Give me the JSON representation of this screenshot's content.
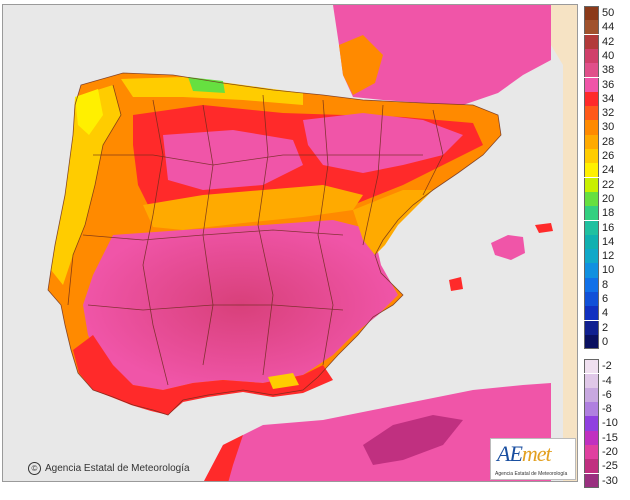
{
  "map": {
    "credit_text": "Agencia Estatal de Meteorología",
    "logo_text": "AEmet",
    "logo_subtext": "Agencia Estatal de Meteorología",
    "colors": {
      "sea": "#e8e8e8",
      "out_of_domain": "#f6e3c4",
      "borders": "#6b2a1a"
    }
  },
  "legend": {
    "unit_implicit": "°C",
    "steps": [
      {
        "label": "50",
        "color": "#8b3a1a"
      },
      {
        "label": "44",
        "color": "#a0522d"
      },
      {
        "label": "42",
        "color": "#b23a3a"
      },
      {
        "label": "40",
        "color": "#d0406a"
      },
      {
        "label": "38",
        "color": "#e0508a"
      },
      {
        "label": "36",
        "color": "#f055a8"
      },
      {
        "label": "34",
        "color": "#ff2a2a"
      },
      {
        "label": "32",
        "color": "#ff5a1a"
      },
      {
        "label": "30",
        "color": "#ff8a00"
      },
      {
        "label": "28",
        "color": "#ffaa00"
      },
      {
        "label": "26",
        "color": "#ffcc00"
      },
      {
        "label": "24",
        "color": "#fff000"
      },
      {
        "label": "22",
        "color": "#c8f000"
      },
      {
        "label": "20",
        "color": "#66e040"
      },
      {
        "label": "18",
        "color": "#33d080"
      },
      {
        "label": "16",
        "color": "#20c0a0"
      },
      {
        "label": "14",
        "color": "#10b0b0"
      },
      {
        "label": "12",
        "color": "#10a8c8"
      },
      {
        "label": "10",
        "color": "#1090e0"
      },
      {
        "label": "8",
        "color": "#1070e8"
      },
      {
        "label": "6",
        "color": "#1050d8"
      },
      {
        "label": "4",
        "color": "#1030c0"
      },
      {
        "label": "2",
        "color": "#102090"
      },
      {
        "label": "0",
        "color": "#0a1060"
      },
      {
        "label": "-2",
        "color": "#f0e0f0"
      },
      {
        "label": "-4",
        "color": "#e0c8e8"
      },
      {
        "label": "-6",
        "color": "#c8a8e0"
      },
      {
        "label": "-8",
        "color": "#b080e0"
      },
      {
        "label": "-10",
        "color": "#9040e0"
      },
      {
        "label": "-15",
        "color": "#c030c0"
      },
      {
        "label": "-20",
        "color": "#e040a0"
      },
      {
        "label": "-25",
        "color": "#c03080"
      },
      {
        "label": "-30",
        "color": "#9a3080"
      }
    ]
  }
}
